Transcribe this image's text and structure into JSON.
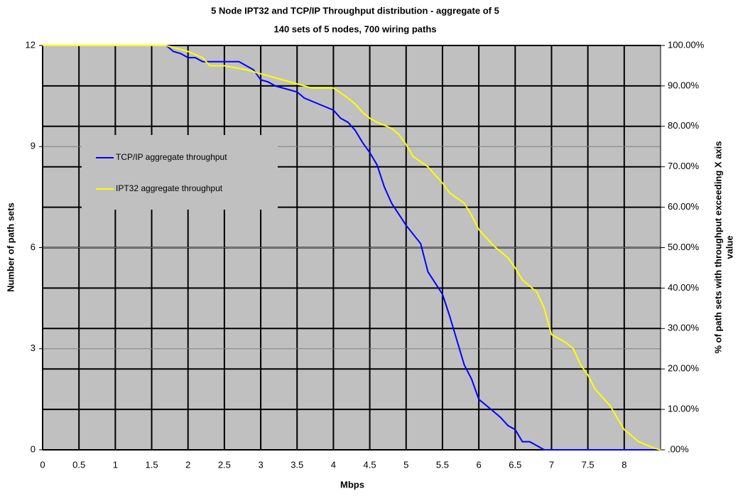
{
  "chart_data": {
    "type": "line",
    "title": "5 Node IPT32 and TCP/IP Throughput distribution - aggregate of 5",
    "subtitle": "140 sets of 5 nodes, 700 wiring paths",
    "xlabel": "Mbps",
    "ylabel": "Number of path sets",
    "y2label": [
      "% of path sets with throughput exceeding X axis",
      "value"
    ],
    "xlim": [
      0,
      8.5
    ],
    "xticks": [
      0,
      0.5,
      1,
      1.5,
      2,
      2.5,
      3,
      3.5,
      4,
      4.5,
      5,
      5.5,
      6,
      6.5,
      7,
      7.5,
      8
    ],
    "ylim": [
      0,
      12
    ],
    "yticks": [
      0,
      3,
      6,
      9,
      12
    ],
    "y2lim": [
      0,
      100
    ],
    "y2ticks": [
      {
        "value": 0,
        "label": ".00%"
      },
      {
        "value": 10,
        "label": "10.00%"
      },
      {
        "value": 20,
        "label": "20.00%"
      },
      {
        "value": 30,
        "label": "30.00%"
      },
      {
        "value": 40,
        "label": "40.00%"
      },
      {
        "value": 50,
        "label": "50.00%"
      },
      {
        "value": 60,
        "label": "60.00%"
      },
      {
        "value": 70,
        "label": "70.00%"
      },
      {
        "value": 80,
        "label": "80.00%"
      },
      {
        "value": 90,
        "label": "90.00%"
      },
      {
        "value": 100,
        "label": "100.00%"
      }
    ],
    "grid": true,
    "plot_background": "#c0c0c0",
    "legend_text_color": "#ff0000",
    "series": [
      {
        "name": "TCP/IP aggregate throughput",
        "color": "#0000ff",
        "axis": "y2",
        "x": [
          0,
          1.7,
          1.8,
          1.9,
          2,
          2.1,
          2.2,
          2.5,
          2.7,
          2.9,
          3,
          3.1,
          3.2,
          3.5,
          3.6,
          3.8,
          4,
          4.1,
          4.2,
          4.3,
          4.4,
          4.5,
          4.6,
          4.7,
          4.8,
          5,
          5.2,
          5.3,
          5.5,
          5.6,
          5.7,
          5.8,
          5.9,
          6,
          6.1,
          6.2,
          6.3,
          6.4,
          6.5,
          6.6,
          6.7,
          6.8,
          6.9,
          8.5
        ],
        "values": [
          100,
          100,
          98.5,
          98,
          97,
          97,
          96,
          96,
          96,
          94,
          91.5,
          91,
          90,
          88.5,
          87,
          85.5,
          84,
          82,
          81,
          79,
          76,
          73.5,
          70.5,
          65,
          61,
          55.5,
          51,
          44,
          38.5,
          33,
          27,
          21,
          17.5,
          12.5,
          11,
          9.5,
          8,
          6,
          5,
          2,
          2,
          1,
          0,
          0
        ]
      },
      {
        "name": "IPT32 aggregate throughput",
        "color": "#ffff00",
        "axis": "y2",
        "x": [
          0,
          1.7,
          2,
          2.2,
          2.3,
          2.5,
          2.8,
          3,
          3.2,
          3.5,
          3.7,
          4,
          4.2,
          4.3,
          4.4,
          4.5,
          4.6,
          4.8,
          4.9,
          5,
          5.1,
          5.3,
          5.5,
          5.6,
          5.8,
          5.9,
          6,
          6.2,
          6.4,
          6.5,
          6.6,
          6.8,
          6.9,
          7,
          7.2,
          7.3,
          7.4,
          7.5,
          7.6,
          7.8,
          8,
          8.2,
          8.4,
          8.5
        ],
        "values": [
          100,
          100,
          98.5,
          97,
          95,
          95,
          94,
          93,
          92,
          90.5,
          89.5,
          89.5,
          87,
          85.5,
          83.5,
          82,
          81,
          79.5,
          78,
          75.5,
          72.5,
          70,
          66,
          63.5,
          61,
          58,
          54.5,
          50.5,
          47.5,
          45,
          42,
          39,
          35,
          28.5,
          26.5,
          25,
          21,
          18.5,
          15,
          11,
          5,
          2,
          0.5,
          0
        ]
      }
    ]
  }
}
